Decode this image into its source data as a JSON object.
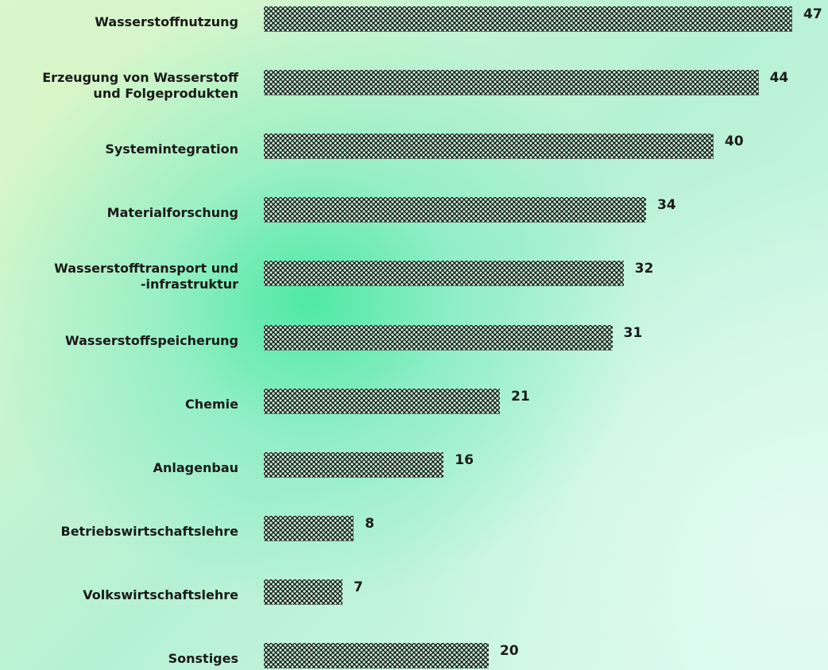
{
  "chart_data": {
    "type": "bar",
    "orientation": "horizontal",
    "categories": [
      "Wasserstoffnutzung",
      "Erzeugung von Wasserstoff\nund Folgeprodukten",
      "Systemintegration",
      "Materialforschung",
      "Wasserstofftransport und\n-infrastruktur",
      "Wasserstoffspeicherung",
      "Chemie",
      "Anlagenbau",
      "Betriebswirtschaftslehre",
      "Volkswirtschaftslehre",
      "Sonstiges"
    ],
    "values": [
      47,
      44,
      40,
      34,
      32,
      31,
      21,
      16,
      8,
      7,
      20
    ],
    "color": "#111111"
  }
}
